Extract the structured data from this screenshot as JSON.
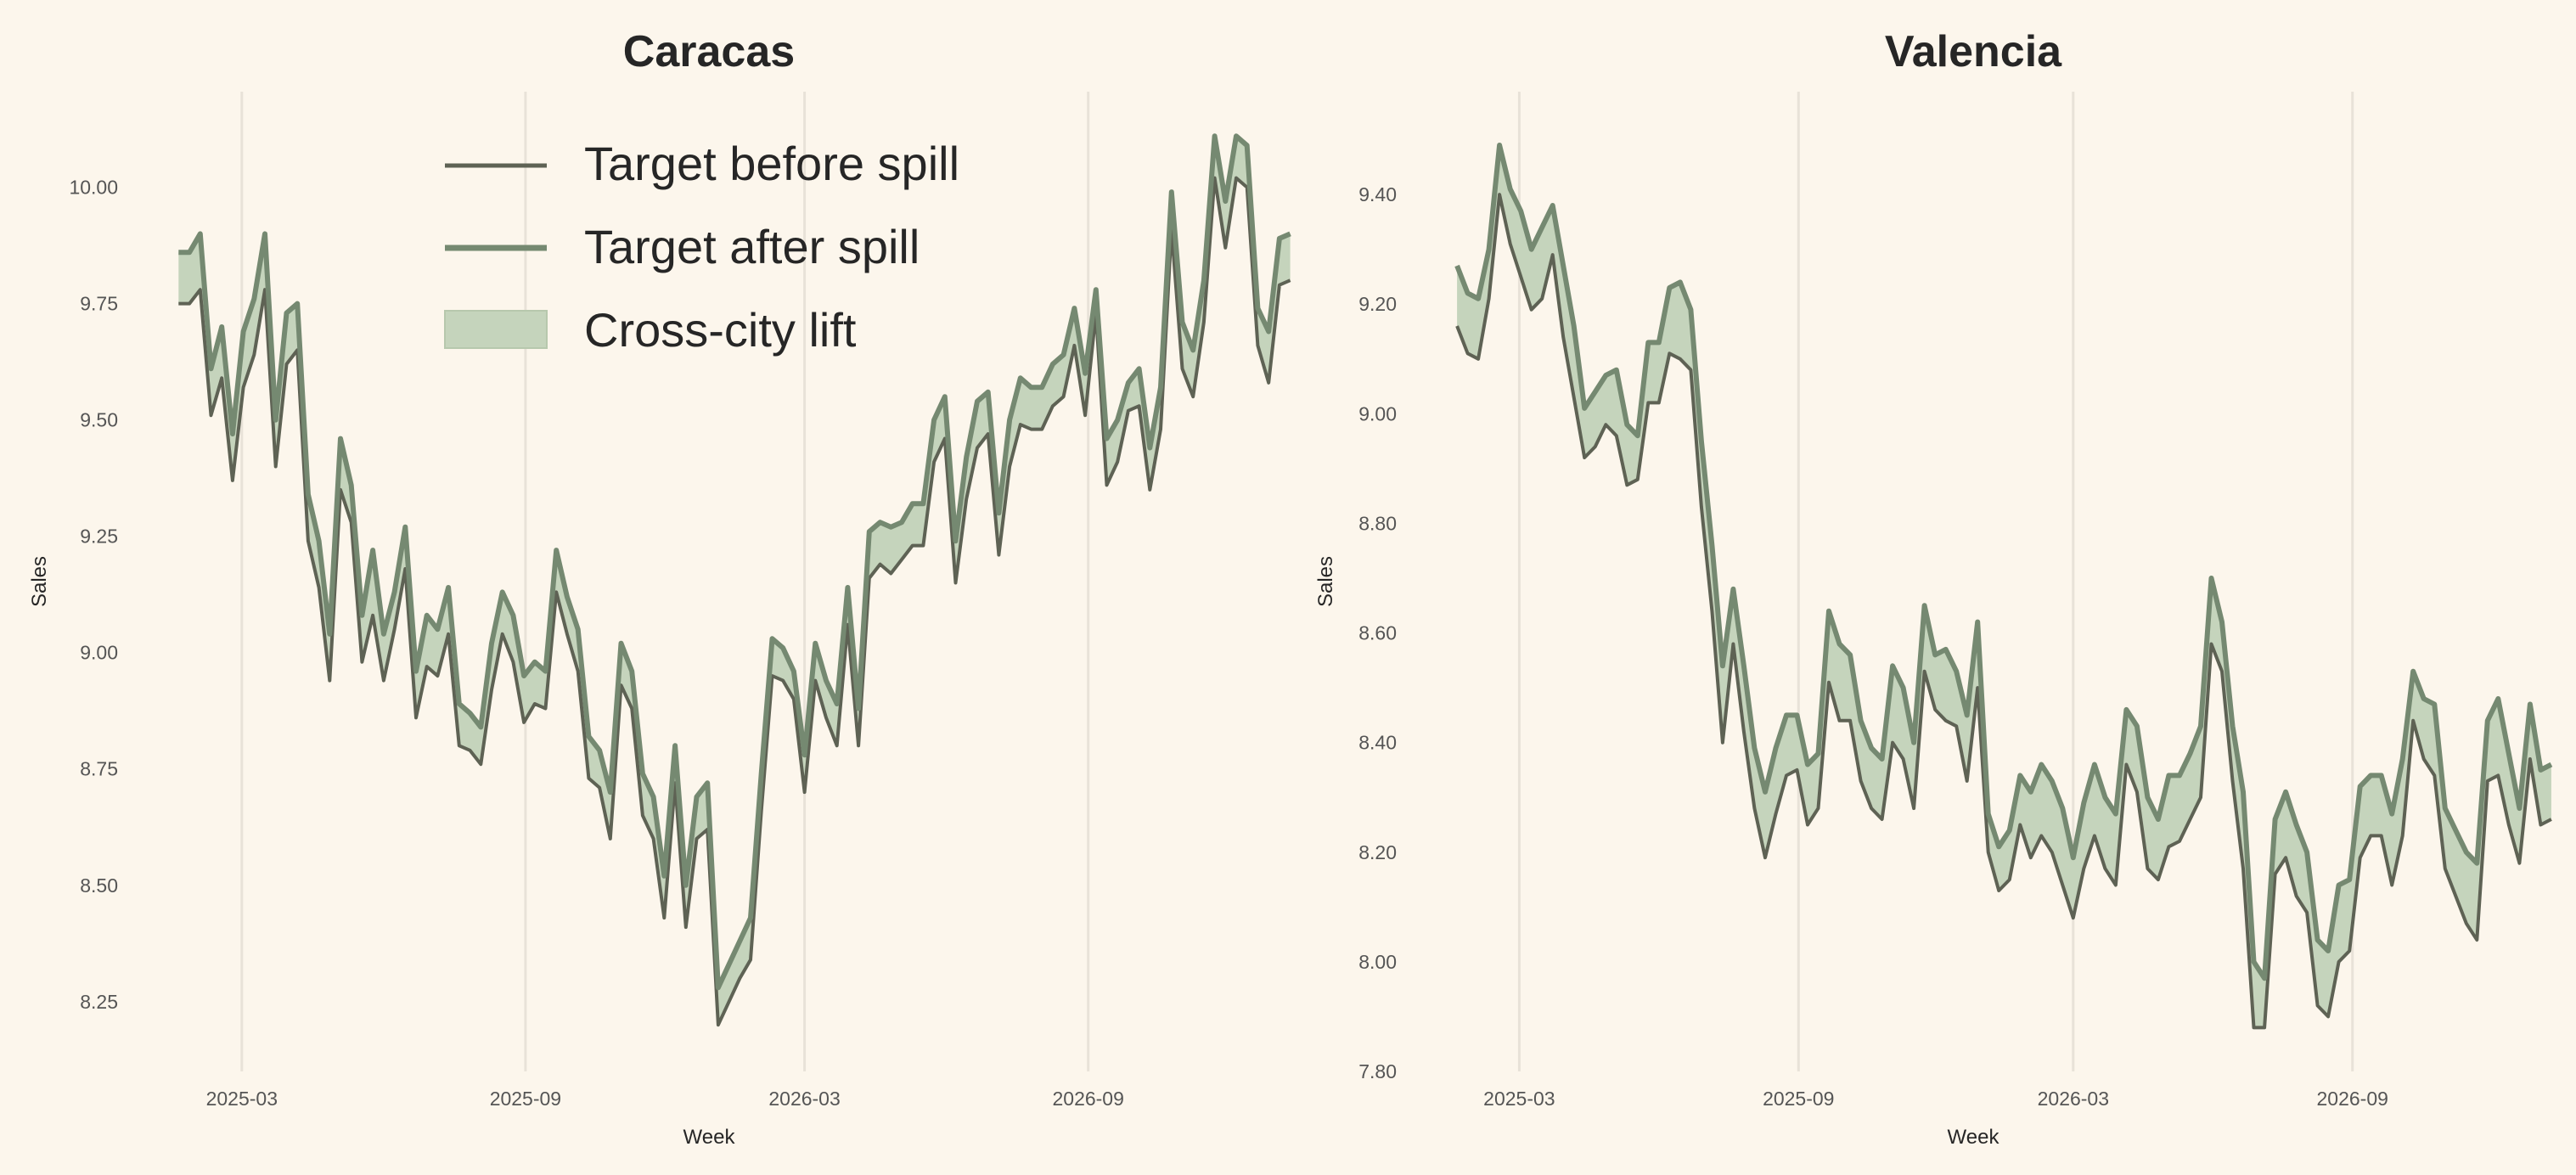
{
  "colors": {
    "background": "#fcf6ec",
    "before_line": "#5e6254",
    "after_line": "#758971",
    "lift_fill": "#c5d4bc",
    "grid": "#e8e2d8"
  },
  "legend": {
    "before": "Target before spill",
    "after": "Target after spill",
    "lift": "Cross-city lift",
    "placement": "top-center (left panel)"
  },
  "chart_data": [
    {
      "type": "line",
      "title": "Caracas",
      "xlabel": "Week",
      "ylabel": "Sales",
      "grid": "vertical",
      "ylim": [
        8.1,
        10.22
      ],
      "xlim": [
        "2025-01-10",
        "2026-12-17"
      ],
      "x_ticks": [
        "2025-03",
        "2025-09",
        "2026-03",
        "2026-09"
      ],
      "x_tick_dates": [
        "2025-03-01",
        "2025-09-01",
        "2026-03-01",
        "2026-09-01"
      ],
      "y_ticks": [
        8.25,
        8.5,
        8.75,
        9.0,
        9.25,
        9.5,
        9.75,
        10.0
      ],
      "x_start": "2025-01-19",
      "x_step_days": 7,
      "series": [
        {
          "name": "Target before spill",
          "values": [
            9.75,
            9.75,
            9.78,
            9.51,
            9.59,
            9.37,
            9.57,
            9.64,
            9.78,
            9.4,
            9.62,
            9.65,
            9.24,
            9.14,
            8.94,
            9.35,
            9.28,
            8.98,
            9.08,
            8.94,
            9.05,
            9.18,
            8.86,
            8.97,
            8.95,
            9.04,
            8.8,
            8.79,
            8.76,
            8.92,
            9.04,
            8.98,
            8.85,
            8.89,
            8.88,
            9.13,
            9.04,
            8.96,
            8.73,
            8.71,
            8.6,
            8.93,
            8.88,
            8.65,
            8.6,
            8.43,
            8.72,
            8.41,
            8.6,
            8.62,
            8.2,
            8.25,
            8.3,
            8.34,
            8.66,
            8.95,
            8.94,
            8.9,
            8.7,
            8.94,
            8.86,
            8.8,
            9.06,
            8.8,
            9.16,
            9.19,
            9.17,
            9.2,
            9.23,
            9.23,
            9.41,
            9.46,
            9.15,
            9.33,
            9.44,
            9.47,
            9.21,
            9.4,
            9.49,
            9.48,
            9.48,
            9.53,
            9.55,
            9.66,
            9.51,
            9.73,
            9.36,
            9.41,
            9.52,
            9.53,
            9.35,
            9.48,
            9.91,
            9.61,
            9.55,
            9.71,
            10.02,
            9.87,
            10.02,
            10.0,
            9.66,
            9.58,
            9.79,
            9.8
          ]
        },
        {
          "name": "Target after spill",
          "values": [
            9.86,
            9.86,
            9.9,
            9.61,
            9.7,
            9.47,
            9.69,
            9.76,
            9.9,
            9.5,
            9.73,
            9.75,
            9.34,
            9.24,
            9.04,
            9.46,
            9.36,
            9.08,
            9.22,
            9.04,
            9.13,
            9.27,
            8.96,
            9.08,
            9.05,
            9.14,
            8.89,
            8.87,
            8.84,
            9.02,
            9.13,
            9.08,
            8.95,
            8.98,
            8.96,
            9.22,
            9.12,
            9.05,
            8.82,
            8.79,
            8.7,
            9.02,
            8.96,
            8.74,
            8.69,
            8.52,
            8.8,
            8.5,
            8.69,
            8.72,
            8.28,
            8.33,
            8.38,
            8.43,
            8.74,
            9.03,
            9.01,
            8.96,
            8.78,
            9.02,
            8.94,
            8.89,
            9.14,
            8.88,
            9.26,
            9.28,
            9.27,
            9.28,
            9.32,
            9.32,
            9.5,
            9.55,
            9.24,
            9.42,
            9.54,
            9.56,
            9.3,
            9.5,
            9.59,
            9.57,
            9.57,
            9.62,
            9.64,
            9.74,
            9.6,
            9.78,
            9.46,
            9.5,
            9.58,
            9.61,
            9.44,
            9.57,
            9.99,
            9.71,
            9.65,
            9.8,
            10.11,
            9.97,
            10.11,
            10.09,
            9.74,
            9.69,
            9.89,
            9.9
          ]
        }
      ]
    },
    {
      "type": "line",
      "title": "Valencia",
      "xlabel": "Week",
      "ylabel": "Sales",
      "grid": "vertical",
      "ylim": [
        7.8,
        9.6
      ],
      "xlim": [
        "2025-01-10",
        "2026-12-17"
      ],
      "x_ticks": [
        "2025-03",
        "2025-09",
        "2026-03",
        "2026-09"
      ],
      "x_tick_dates": [
        "2025-03-01",
        "2025-09-01",
        "2026-03-01",
        "2026-09-01"
      ],
      "y_ticks": [
        7.8,
        8.0,
        8.2,
        8.4,
        8.6,
        8.8,
        9.0,
        9.2,
        9.4
      ],
      "x_start": "2025-01-19",
      "x_step_days": 7,
      "series": [
        {
          "name": "Target before spill",
          "values": [
            9.16,
            9.11,
            9.1,
            9.21,
            9.4,
            9.31,
            9.25,
            9.19,
            9.21,
            9.29,
            9.14,
            9.03,
            8.92,
            8.94,
            8.98,
            8.96,
            8.87,
            8.88,
            9.02,
            9.02,
            9.11,
            9.1,
            9.08,
            8.83,
            8.64,
            8.4,
            8.58,
            8.42,
            8.28,
            8.19,
            8.27,
            8.34,
            8.35,
            8.25,
            8.28,
            8.51,
            8.44,
            8.44,
            8.33,
            8.28,
            8.26,
            8.4,
            8.37,
            8.28,
            8.53,
            8.46,
            8.44,
            8.43,
            8.33,
            8.5,
            8.2,
            8.13,
            8.15,
            8.25,
            8.19,
            8.23,
            8.2,
            8.14,
            8.08,
            8.17,
            8.23,
            8.17,
            8.14,
            8.36,
            8.31,
            8.17,
            8.15,
            8.21,
            8.22,
            8.26,
            8.3,
            8.58,
            8.53,
            8.33,
            8.17,
            7.88,
            7.88,
            8.16,
            8.19,
            8.12,
            8.09,
            7.92,
            7.9,
            8.0,
            8.02,
            8.19,
            8.23,
            8.23,
            8.14,
            8.23,
            8.44,
            8.37,
            8.34,
            8.17,
            8.12,
            8.07,
            8.04,
            8.33,
            8.34,
            8.25,
            8.18,
            8.37,
            8.25,
            8.26
          ]
        },
        {
          "name": "Target after spill",
          "values": [
            9.27,
            9.22,
            9.21,
            9.3,
            9.49,
            9.41,
            9.37,
            9.3,
            9.34,
            9.38,
            9.27,
            9.16,
            9.01,
            9.04,
            9.07,
            9.08,
            8.98,
            8.96,
            9.13,
            9.13,
            9.23,
            9.24,
            9.19,
            8.95,
            8.76,
            8.54,
            8.68,
            8.54,
            8.39,
            8.31,
            8.39,
            8.45,
            8.45,
            8.36,
            8.38,
            8.64,
            8.58,
            8.56,
            8.44,
            8.39,
            8.37,
            8.54,
            8.5,
            8.4,
            8.65,
            8.56,
            8.57,
            8.53,
            8.45,
            8.62,
            8.27,
            8.21,
            8.24,
            8.34,
            8.31,
            8.36,
            8.33,
            8.28,
            8.19,
            8.29,
            8.36,
            8.3,
            8.27,
            8.46,
            8.43,
            8.3,
            8.26,
            8.34,
            8.34,
            8.38,
            8.43,
            8.7,
            8.62,
            8.43,
            8.31,
            8.0,
            7.97,
            8.26,
            8.31,
            8.25,
            8.2,
            8.04,
            8.02,
            8.14,
            8.15,
            8.32,
            8.34,
            8.34,
            8.27,
            8.37,
            8.53,
            8.48,
            8.47,
            8.28,
            8.24,
            8.2,
            8.18,
            8.44,
            8.48,
            8.38,
            8.28,
            8.47,
            8.35,
            8.36
          ]
        }
      ]
    }
  ]
}
